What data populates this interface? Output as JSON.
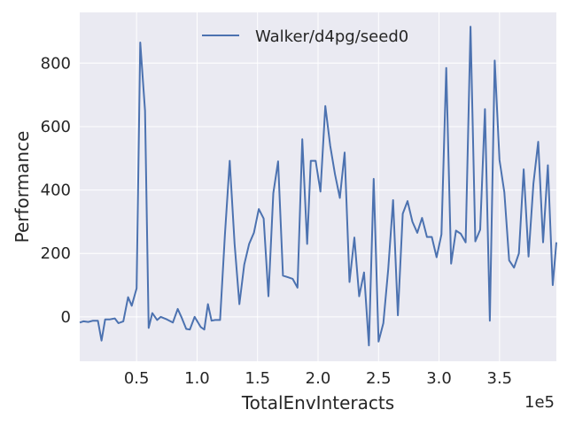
{
  "chart_data": {
    "type": "line",
    "xlabel": "TotalEnvInteracts",
    "ylabel": "Performance",
    "x_offset_label": "1e5",
    "xlim": [
      3000,
      397000
    ],
    "ylim": [
      -140,
      960
    ],
    "xticks": [
      {
        "value": 50000,
        "label": "0.5"
      },
      {
        "value": 100000,
        "label": "1.0"
      },
      {
        "value": 150000,
        "label": "1.5"
      },
      {
        "value": 200000,
        "label": "2.0"
      },
      {
        "value": 250000,
        "label": "2.5"
      },
      {
        "value": 300000,
        "label": "3.0"
      },
      {
        "value": 350000,
        "label": "3.5"
      }
    ],
    "yticks": [
      {
        "value": 0,
        "label": "0"
      },
      {
        "value": 200,
        "label": "200"
      },
      {
        "value": 400,
        "label": "400"
      },
      {
        "value": 600,
        "label": "600"
      },
      {
        "value": 800,
        "label": "800"
      }
    ],
    "grid": true,
    "background": "#eaeaf2",
    "legend_position": "top-center",
    "series": [
      {
        "name": "Walker/d4pg/seed0",
        "color": "#4c72b0",
        "points": [
          [
            3000,
            -18
          ],
          [
            6000,
            -14
          ],
          [
            10000,
            -16
          ],
          [
            14000,
            -12
          ],
          [
            18000,
            -12
          ],
          [
            21000,
            -75
          ],
          [
            24000,
            -8
          ],
          [
            28000,
            -8
          ],
          [
            32000,
            -5
          ],
          [
            35000,
            -20
          ],
          [
            39000,
            -14
          ],
          [
            43000,
            62
          ],
          [
            46000,
            35
          ],
          [
            50000,
            90
          ],
          [
            53000,
            865
          ],
          [
            57000,
            650
          ],
          [
            60000,
            -35
          ],
          [
            63000,
            12
          ],
          [
            67000,
            -10
          ],
          [
            70000,
            0
          ],
          [
            75000,
            -8
          ],
          [
            80000,
            -18
          ],
          [
            84000,
            25
          ],
          [
            87000,
            0
          ],
          [
            91000,
            -38
          ],
          [
            94000,
            -40
          ],
          [
            98000,
            0
          ],
          [
            103000,
            -32
          ],
          [
            106000,
            -40
          ],
          [
            109000,
            40
          ],
          [
            112000,
            -12
          ],
          [
            115000,
            -10
          ],
          [
            119000,
            -10
          ],
          [
            123000,
            260
          ],
          [
            127000,
            492
          ],
          [
            131000,
            230
          ],
          [
            135000,
            40
          ],
          [
            139000,
            165
          ],
          [
            143000,
            230
          ],
          [
            147000,
            265
          ],
          [
            151000,
            340
          ],
          [
            155000,
            310
          ],
          [
            159000,
            65
          ],
          [
            163000,
            390
          ],
          [
            167000,
            490
          ],
          [
            171000,
            130
          ],
          [
            175000,
            125
          ],
          [
            179000,
            120
          ],
          [
            183000,
            92
          ],
          [
            187000,
            560
          ],
          [
            191000,
            230
          ],
          [
            194000,
            492
          ],
          [
            198000,
            492
          ],
          [
            202000,
            395
          ],
          [
            206000,
            665
          ],
          [
            210000,
            540
          ],
          [
            214000,
            450
          ],
          [
            218000,
            375
          ],
          [
            222000,
            518
          ],
          [
            226000,
            110
          ],
          [
            230000,
            250
          ],
          [
            234000,
            65
          ],
          [
            238000,
            140
          ],
          [
            242000,
            -90
          ],
          [
            246000,
            435
          ],
          [
            250000,
            -78
          ],
          [
            254000,
            -20
          ],
          [
            258000,
            150
          ],
          [
            262000,
            368
          ],
          [
            266000,
            5
          ],
          [
            270000,
            325
          ],
          [
            274000,
            365
          ],
          [
            278000,
            300
          ],
          [
            282000,
            265
          ],
          [
            286000,
            312
          ],
          [
            290000,
            252
          ],
          [
            294000,
            252
          ],
          [
            298000,
            188
          ],
          [
            302000,
            260
          ],
          [
            306000,
            785
          ],
          [
            310000,
            168
          ],
          [
            314000,
            272
          ],
          [
            318000,
            262
          ],
          [
            322000,
            235
          ],
          [
            326000,
            915
          ],
          [
            330000,
            238
          ],
          [
            334000,
            275
          ],
          [
            338000,
            655
          ],
          [
            342000,
            -12
          ],
          [
            346000,
            808
          ],
          [
            350000,
            495
          ],
          [
            354000,
            392
          ],
          [
            358000,
            178
          ],
          [
            362000,
            155
          ],
          [
            366000,
            200
          ],
          [
            370000,
            465
          ],
          [
            374000,
            190
          ],
          [
            378000,
            420
          ],
          [
            382000,
            552
          ],
          [
            386000,
            235
          ],
          [
            390000,
            478
          ],
          [
            394000,
            100
          ],
          [
            397000,
            235
          ]
        ]
      }
    ]
  }
}
